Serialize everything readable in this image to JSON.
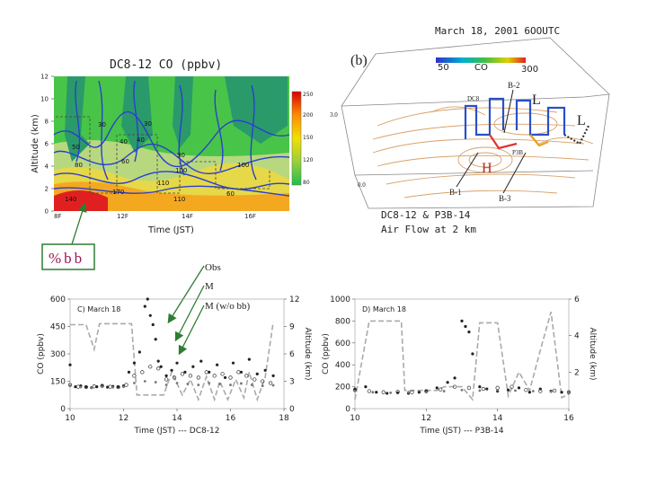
{
  "panel_a": {
    "title": "DC8-12 CO (ppbv)",
    "ylabel": "Altitude (km)",
    "xlabel": "Time (JST)",
    "y_ticks": [
      "12",
      "10",
      "8",
      "6",
      "4",
      "2",
      "0"
    ],
    "y_range": [
      0,
      12
    ],
    "x_ticks": [
      "8F",
      "12F",
      "14F",
      "16F"
    ],
    "colorbar": [
      "250",
      "200",
      "150",
      "120",
      "80"
    ],
    "contour_labels": [
      "30",
      "40",
      "50",
      "60",
      "80",
      "90",
      "100",
      "110",
      "140",
      "170"
    ],
    "bb_label": "%bb"
  },
  "panel_b": {
    "header": "March 18, 2001 6OOUTC",
    "tag": "(b)",
    "co_scale_min": "50",
    "co_scale_label": "CO",
    "co_scale_max": "300",
    "point_labels": [
      "B-2",
      "B-1",
      "B-3",
      "L",
      "L",
      "H",
      "DC8",
      "P3B",
      "3.0",
      "0.0"
    ],
    "caption_line1": "DC8-12 & P3B-14",
    "caption_line2": "Air Flow at 2 km"
  },
  "legend": {
    "obs": "Obs",
    "model": "M",
    "model_no_bb": "M (w/o bb)"
  },
  "chart_data": [
    {
      "type": "scatter",
      "title": "C) March 18",
      "xlabel": "Time (JST) --- DC8-12",
      "ylabel": "CO (ppbv)",
      "ylabel_right": "Altitude (km)",
      "xlim": [
        10,
        18
      ],
      "ylim": [
        0,
        600
      ],
      "y2lim": [
        0,
        12
      ],
      "x_ticks": [
        10,
        12,
        14,
        16,
        18
      ],
      "y_ticks": [
        0,
        150,
        300,
        450,
        600
      ],
      "y2_ticks": [
        0,
        3,
        6,
        9,
        12
      ],
      "altitude": {
        "x": [
          10.0,
          10.6,
          10.9,
          11.1,
          12.3,
          12.5,
          13.5,
          13.8,
          14.2,
          14.5,
          14.8,
          15.1,
          15.4,
          15.6,
          15.9,
          16.2,
          16.5,
          16.7,
          17.0,
          17.3,
          17.6
        ],
        "y": [
          9.2,
          9.2,
          6.5,
          9.3,
          9.3,
          1.5,
          1.5,
          4.0,
          1.5,
          3.2,
          1.0,
          3.5,
          1.0,
          3.0,
          1.0,
          3.2,
          1.2,
          4.0,
          1.0,
          3.5,
          9.5
        ]
      },
      "series": [
        {
          "name": "Obs",
          "x": [
            10.0,
            10.2,
            10.4,
            10.6,
            10.8,
            11.0,
            11.2,
            11.4,
            11.6,
            11.8,
            12.0,
            12.2,
            12.4,
            12.6,
            12.8,
            12.9,
            13.0,
            13.1,
            13.2,
            13.3,
            13.4,
            13.6,
            13.8,
            14.0,
            14.3,
            14.6,
            14.9,
            15.2,
            15.5,
            15.8,
            16.1,
            16.4,
            16.7,
            17.0,
            17.3,
            17.6
          ],
          "values": [
            240,
            120,
            125,
            120,
            115,
            120,
            125,
            118,
            122,
            120,
            125,
            200,
            250,
            310,
            560,
            600,
            510,
            460,
            380,
            260,
            230,
            180,
            210,
            250,
            200,
            230,
            260,
            200,
            240,
            170,
            250,
            200,
            270,
            190,
            210,
            180
          ]
        },
        {
          "name": "M",
          "x": [
            10.0,
            10.3,
            10.6,
            10.9,
            11.2,
            11.5,
            11.8,
            12.1,
            12.4,
            12.7,
            13.0,
            13.3,
            13.6,
            13.9,
            14.2,
            14.5,
            14.8,
            15.1,
            15.4,
            15.7,
            16.0,
            16.3,
            16.6,
            16.9,
            17.2,
            17.5
          ],
          "values": [
            130,
            120,
            118,
            122,
            125,
            120,
            118,
            130,
            180,
            200,
            230,
            220,
            160,
            170,
            190,
            180,
            170,
            200,
            180,
            190,
            170,
            200,
            180,
            160,
            150,
            140
          ]
        },
        {
          "name": "M (w/o bb)",
          "x": [
            10.0,
            10.4,
            10.8,
            11.2,
            11.6,
            12.0,
            12.4,
            12.8,
            13.2,
            13.6,
            14.0,
            14.4,
            14.8,
            15.2,
            15.6,
            16.0,
            16.4,
            16.8,
            17.2,
            17.6
          ],
          "values": [
            125,
            118,
            115,
            120,
            117,
            120,
            140,
            150,
            145,
            130,
            140,
            135,
            130,
            140,
            135,
            130,
            138,
            130,
            125,
            128
          ]
        }
      ]
    },
    {
      "type": "scatter",
      "title": "D) March 18",
      "xlabel": "Time (JST) --- P3B-14",
      "ylabel": "CO (ppbv)",
      "ylabel_right": "Altitude (km)",
      "xlim": [
        10,
        16
      ],
      "ylim": [
        0,
        1000
      ],
      "y2lim": [
        0,
        6
      ],
      "x_ticks": [
        10,
        12,
        14,
        16
      ],
      "y_ticks": [
        0,
        200,
        400,
        600,
        800,
        1000
      ],
      "y2_ticks": [
        2,
        4,
        6
      ],
      "altitude": {
        "x": [
          10.0,
          10.4,
          10.9,
          11.3,
          11.4,
          12.3,
          12.5,
          13.0,
          13.3,
          13.5,
          13.8,
          14.0,
          14.3,
          14.6,
          14.9,
          15.2,
          15.5,
          15.8,
          16.0
        ],
        "y": [
          0.5,
          4.8,
          4.8,
          4.8,
          1.0,
          1.0,
          1.2,
          1.2,
          0.5,
          4.7,
          4.7,
          4.7,
          0.7,
          2.0,
          1.0,
          3.2,
          5.3,
          0.6,
          0.8
        ]
      },
      "series": [
        {
          "name": "Obs",
          "x": [
            10.0,
            10.3,
            10.6,
            10.9,
            11.2,
            11.5,
            11.8,
            12.0,
            12.3,
            12.6,
            12.8,
            13.0,
            13.1,
            13.2,
            13.3,
            13.5,
            13.7,
            14.0,
            14.3,
            14.6,
            14.9,
            15.2,
            15.5,
            15.8
          ],
          "values": [
            180,
            200,
            150,
            140,
            145,
            140,
            150,
            160,
            190,
            240,
            280,
            800,
            750,
            700,
            500,
            200,
            180,
            160,
            170,
            190,
            150,
            180,
            160,
            150
          ]
        },
        {
          "name": "M",
          "x": [
            10.0,
            10.4,
            10.8,
            11.2,
            11.6,
            12.0,
            12.4,
            12.8,
            13.2,
            13.6,
            14.0,
            14.4,
            14.8,
            15.2,
            15.6,
            16.0
          ],
          "values": [
            170,
            160,
            150,
            155,
            150,
            160,
            175,
            200,
            190,
            180,
            190,
            200,
            170,
            160,
            165,
            150
          ]
        },
        {
          "name": "M (w/o bb)",
          "x": [
            10.0,
            10.5,
            11.0,
            11.5,
            12.0,
            12.5,
            13.0,
            13.5,
            14.0,
            14.5,
            15.0,
            15.5,
            16.0
          ],
          "values": [
            160,
            150,
            145,
            150,
            150,
            160,
            170,
            165,
            170,
            165,
            160,
            155,
            150
          ]
        }
      ]
    }
  ]
}
